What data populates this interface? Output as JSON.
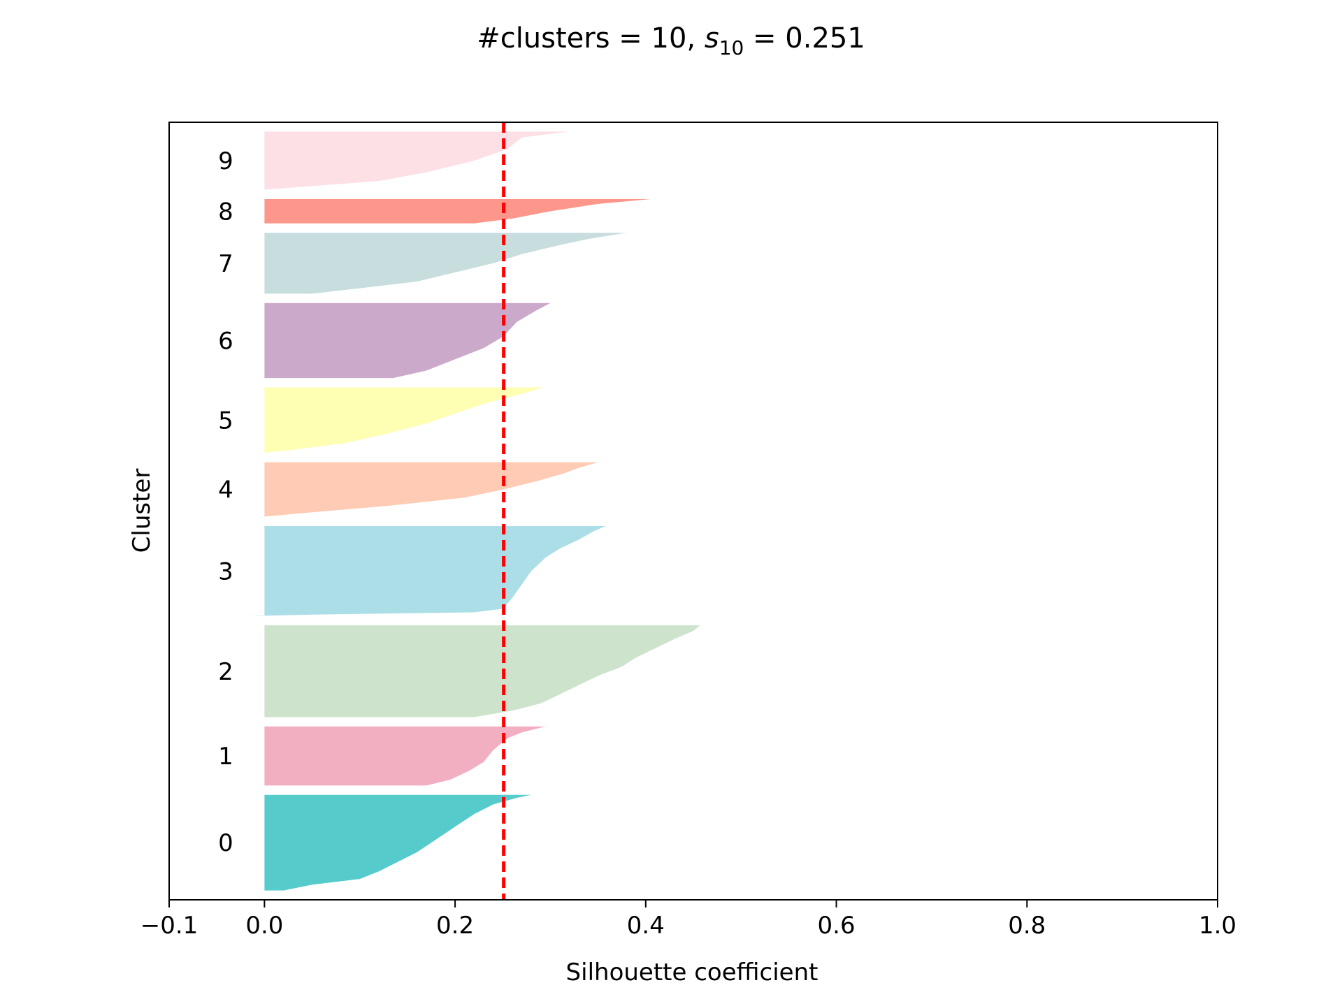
{
  "chart_data": {
    "type": "silhouette",
    "title": {
      "prefix": "#clusters = 10, ",
      "symbol": "s",
      "subscript": "10",
      "suffix": " = 0.251"
    },
    "xlabel": "Silhouette coefficient",
    "ylabel": "Cluster",
    "xlim": [
      -0.1,
      1.0
    ],
    "xticks": [
      -0.1,
      0.0,
      0.2,
      0.4,
      0.6,
      0.8,
      1.0
    ],
    "xtick_labels": [
      "−0.1",
      "0.0",
      "0.2",
      "0.4",
      "0.6",
      "0.8",
      "1.0"
    ],
    "average_silhouette": 0.251,
    "average_line_color": "#ff0000",
    "clusters": [
      {
        "label": "0",
        "color": "#56cbcb",
        "size": 102,
        "profile": [
          [
            0,
            0.28
          ],
          [
            0.03,
            0.265
          ],
          [
            0.1,
            0.24
          ],
          [
            0.2,
            0.22
          ],
          [
            0.3,
            0.205
          ],
          [
            0.4,
            0.19
          ],
          [
            0.5,
            0.175
          ],
          [
            0.6,
            0.16
          ],
          [
            0.7,
            0.14
          ],
          [
            0.8,
            0.12
          ],
          [
            0.88,
            0.1
          ],
          [
            0.94,
            0.05
          ],
          [
            1,
            0.02
          ]
        ]
      },
      {
        "label": "1",
        "color": "#f2afc2",
        "size": 63,
        "profile": [
          [
            0,
            0.295
          ],
          [
            0.1,
            0.27
          ],
          [
            0.2,
            0.255
          ],
          [
            0.4,
            0.24
          ],
          [
            0.6,
            0.23
          ],
          [
            0.75,
            0.215
          ],
          [
            0.9,
            0.195
          ],
          [
            1,
            0.17
          ]
        ]
      },
      {
        "label": "2",
        "color": "#cde3cc",
        "size": 98,
        "profile": [
          [
            0,
            0.457
          ],
          [
            0.06,
            0.45
          ],
          [
            0.15,
            0.43
          ],
          [
            0.25,
            0.41
          ],
          [
            0.35,
            0.39
          ],
          [
            0.45,
            0.375
          ],
          [
            0.55,
            0.35
          ],
          [
            0.65,
            0.33
          ],
          [
            0.75,
            0.31
          ],
          [
            0.85,
            0.29
          ],
          [
            0.93,
            0.26
          ],
          [
            1,
            0.22
          ]
        ]
      },
      {
        "label": "3",
        "color": "#acdee7",
        "size": 96,
        "profile": [
          [
            0,
            0.358
          ],
          [
            0.06,
            0.345
          ],
          [
            0.15,
            0.33
          ],
          [
            0.25,
            0.31
          ],
          [
            0.35,
            0.295
          ],
          [
            0.5,
            0.28
          ],
          [
            0.65,
            0.27
          ],
          [
            0.8,
            0.26
          ],
          [
            0.92,
            0.25
          ],
          [
            0.96,
            0.22
          ],
          [
            0.985,
            0.05
          ],
          [
            1,
            -0.015
          ]
        ]
      },
      {
        "label": "4",
        "color": "#ffcbb4",
        "size": 58,
        "profile": [
          [
            0,
            0.35
          ],
          [
            0.1,
            0.33
          ],
          [
            0.2,
            0.315
          ],
          [
            0.35,
            0.285
          ],
          [
            0.5,
            0.25
          ],
          [
            0.65,
            0.21
          ],
          [
            0.8,
            0.13
          ],
          [
            0.92,
            0.05
          ],
          [
            1,
            0.0
          ]
        ]
      },
      {
        "label": "5",
        "color": "#feffb2",
        "size": 70,
        "profile": [
          [
            0,
            0.293
          ],
          [
            0.1,
            0.27
          ],
          [
            0.25,
            0.23
          ],
          [
            0.4,
            0.2
          ],
          [
            0.55,
            0.17
          ],
          [
            0.7,
            0.13
          ],
          [
            0.85,
            0.085
          ],
          [
            0.95,
            0.03
          ],
          [
            1,
            -0.003
          ]
        ]
      },
      {
        "label": "6",
        "color": "#cba9ca",
        "size": 80,
        "profile": [
          [
            0,
            0.3
          ],
          [
            0.1,
            0.285
          ],
          [
            0.25,
            0.265
          ],
          [
            0.45,
            0.25
          ],
          [
            0.6,
            0.23
          ],
          [
            0.75,
            0.2
          ],
          [
            0.9,
            0.17
          ],
          [
            1,
            0.135
          ]
        ]
      },
      {
        "label": "7",
        "color": "#c8ddde",
        "size": 65,
        "profile": [
          [
            0,
            0.38
          ],
          [
            0.1,
            0.34
          ],
          [
            0.2,
            0.31
          ],
          [
            0.35,
            0.27
          ],
          [
            0.5,
            0.24
          ],
          [
            0.65,
            0.2
          ],
          [
            0.8,
            0.16
          ],
          [
            0.92,
            0.095
          ],
          [
            1,
            0.05
          ]
        ]
      },
      {
        "label": "8",
        "color": "#fe978b",
        "size": 26,
        "profile": [
          [
            0,
            0.405
          ],
          [
            0.2,
            0.35
          ],
          [
            0.5,
            0.3
          ],
          [
            0.8,
            0.26
          ],
          [
            1,
            0.22
          ]
        ]
      },
      {
        "label": "9",
        "color": "#fde0e6",
        "size": 62,
        "profile": [
          [
            0,
            0.32
          ],
          [
            0.1,
            0.27
          ],
          [
            0.3,
            0.255
          ],
          [
            0.5,
            0.22
          ],
          [
            0.7,
            0.17
          ],
          [
            0.85,
            0.12
          ],
          [
            1,
            0.0
          ]
        ]
      }
    ]
  }
}
